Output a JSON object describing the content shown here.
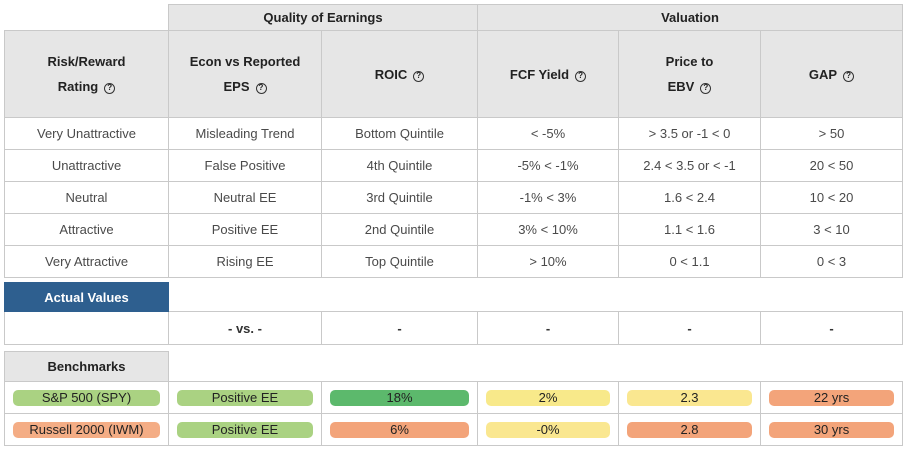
{
  "group_headers": {
    "quality": "Quality of Earnings",
    "valuation": "Valuation"
  },
  "columns": {
    "rating_line1": "Risk/Reward",
    "rating_line2": "Rating",
    "econ_line1": "Econ vs Reported",
    "econ_line2": "EPS",
    "roic": "ROIC",
    "fcf": "FCF Yield",
    "price_line1": "Price to",
    "price_line2": "EBV",
    "gap": "GAP"
  },
  "help_symbol": "?",
  "rows": [
    [
      "Very Unattractive",
      "Misleading Trend",
      "Bottom Quintile",
      "< -5%",
      "> 3.5 or -1 < 0",
      "> 50"
    ],
    [
      "Unattractive",
      "False Positive",
      "4th Quintile",
      "-5% < -1%",
      "2.4 < 3.5 or < -1",
      "20 < 50"
    ],
    [
      "Neutral",
      "Neutral EE",
      "3rd Quintile",
      "-1% < 3%",
      "1.6 < 2.4",
      "10 < 20"
    ],
    [
      "Attractive",
      "Positive EE",
      "2nd Quintile",
      "3% < 10%",
      "1.1 < 1.6",
      "3 < 10"
    ],
    [
      "Very Attractive",
      "Rising EE",
      "Top Quintile",
      "> 10%",
      "0 < 1.1",
      "0 < 3"
    ]
  ],
  "actual_values": {
    "label": "Actual Values",
    "values": [
      "",
      "- vs. -",
      "-",
      "-",
      "-",
      "-"
    ]
  },
  "benchmarks": {
    "label": "Benchmarks",
    "rows": [
      [
        "S&P 500 (SPY)",
        "Positive EE",
        "18%",
        "2%",
        "2.3",
        "22 yrs"
      ],
      [
        "Russell 2000 (IWM)",
        "Positive EE",
        "6%",
        "-0%",
        "2.8",
        "30 yrs"
      ]
    ]
  },
  "colors": {
    "actual_header": "#2e5f8f",
    "light_green": "#aad282",
    "green": "#5cb96c",
    "yellow": "#f8e98a",
    "orange": "#f3a47a",
    "header_gray": "#e6e6e6"
  }
}
